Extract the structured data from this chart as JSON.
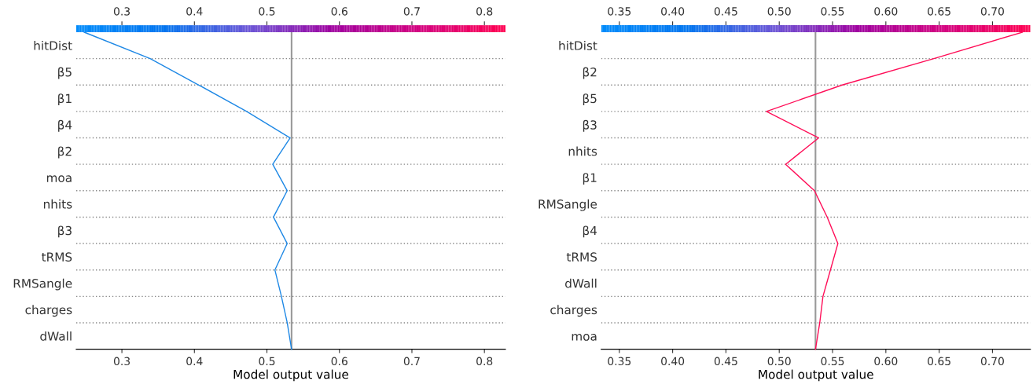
{
  "chart_data": [
    {
      "type": "line",
      "orientation": "horizontal",
      "categories": [
        null,
        "hitDist",
        null,
        "β5",
        null,
        "β1",
        null,
        "β4",
        null,
        "β2",
        null,
        "moa",
        null,
        "nhits",
        null,
        "β3",
        null,
        "tRMS",
        null,
        "RMSangle",
        null,
        "charges",
        null,
        "dWall",
        null
      ],
      "series": [
        {
          "color": "#1e88e5",
          "values": [
            0.248,
            null,
            0.339,
            null,
            0.406,
            null,
            0.472,
            null,
            0.532,
            null,
            0.508,
            null,
            0.528,
            null,
            0.509,
            null,
            0.528,
            null,
            0.511,
            null,
            0.52,
            null,
            0.528,
            null,
            0.534
          ]
        }
      ],
      "xlim": [
        0.237,
        0.829
      ],
      "xticks": [
        0.3,
        0.4,
        0.5,
        0.6,
        0.7,
        0.8
      ],
      "xlabel": "Model output value",
      "clim": [
        0.237,
        0.829
      ],
      "cticks": [
        0.3,
        0.4,
        0.5,
        0.6,
        0.7,
        0.8
      ],
      "ref_lines": [
        {
          "axis": "x",
          "value": 0.534,
          "color": "#999999"
        }
      ],
      "grid": "y"
    },
    {
      "type": "line",
      "orientation": "horizontal",
      "categories": [
        null,
        "hitDist",
        null,
        "β2",
        null,
        "β5",
        null,
        "β3",
        null,
        "nhits",
        null,
        "β1",
        null,
        "RMSangle",
        null,
        "β4",
        null,
        "tRMS",
        null,
        "dWall",
        null,
        "charges",
        null,
        "moa",
        null
      ],
      "series": [
        {
          "color": "#ff0d57",
          "values": [
            0.728,
            null,
            0.645,
            null,
            0.559,
            null,
            0.488,
            null,
            0.537,
            null,
            0.506,
            null,
            0.533,
            null,
            0.545,
            null,
            0.555,
            null,
            0.548,
            null,
            0.541,
            null,
            0.538,
            null,
            0.534
          ]
        }
      ],
      "xlim": [
        0.333,
        0.7356
      ],
      "xticks": [
        0.35,
        {
          "value": 0.4,
          "label": "0.40"
        },
        0.45,
        {
          "value": 0.5,
          "label": "0.50"
        },
        0.55,
        {
          "value": 0.6,
          "label": "0.60"
        },
        0.65,
        {
          "value": 0.7,
          "label": "0.70"
        }
      ],
      "xlabel": "Model output value",
      "clim": [
        0.333,
        0.7356
      ],
      "cticks": [
        0.35,
        {
          "value": 0.4,
          "label": "0.40"
        },
        0.45,
        {
          "value": 0.5,
          "label": "0.50"
        },
        0.55,
        {
          "value": 0.6,
          "label": "0.60"
        },
        0.65,
        {
          "value": 0.7,
          "label": "0.70"
        }
      ],
      "ref_lines": [
        {
          "axis": "x",
          "value": 0.534,
          "color": "#999999"
        }
      ],
      "grid": "y"
    }
  ]
}
